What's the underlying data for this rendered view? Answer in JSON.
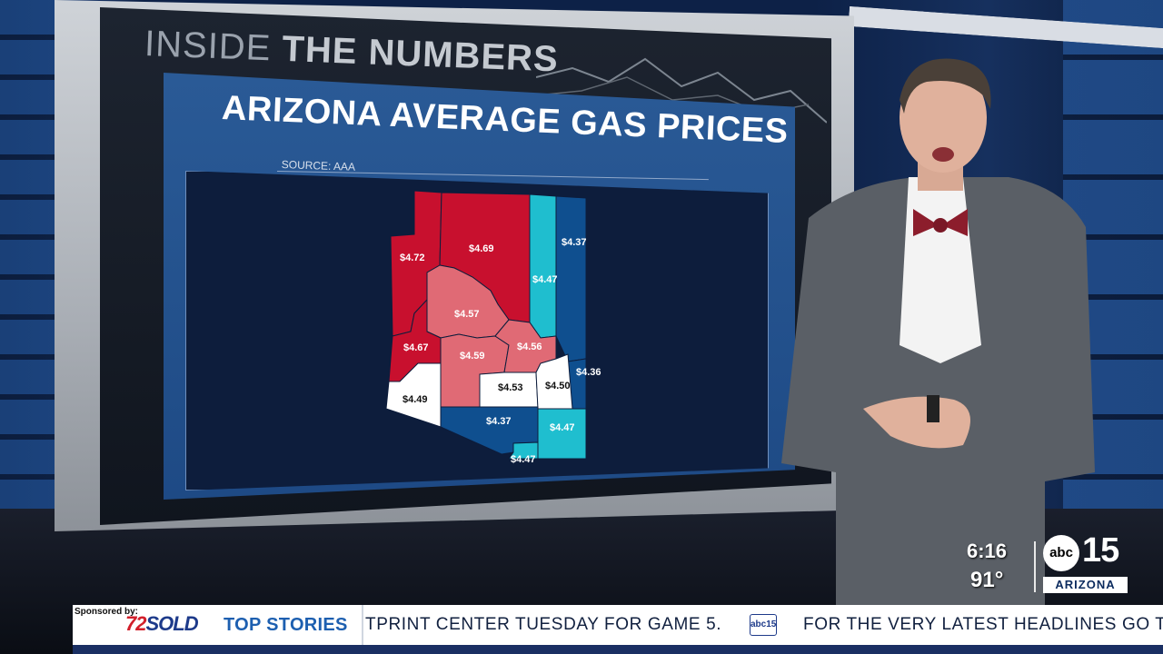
{
  "segment": {
    "title_light": "INSIDE",
    "title_bold": "THE NUMBERS"
  },
  "graphic": {
    "title": "ARIZONA AVERAGE GAS PRICES",
    "source": "SOURCE: AAA"
  },
  "map": {
    "regions": [
      {
        "id": "mohave",
        "price": "$4.72",
        "color": "#c8102e"
      },
      {
        "id": "coconino",
        "price": "$4.69",
        "color": "#c8102e"
      },
      {
        "id": "navajo",
        "price": "$4.47",
        "color": "#1fbecf"
      },
      {
        "id": "apache",
        "price": "$4.37",
        "color": "#0f4f8f"
      },
      {
        "id": "yavapai",
        "price": "$4.57",
        "color": "#e06a75"
      },
      {
        "id": "la-paz",
        "price": "$4.67",
        "color": "#c8102e"
      },
      {
        "id": "maricopa",
        "price": "$4.59",
        "color": "#e06a75"
      },
      {
        "id": "gila",
        "price": "$4.56",
        "color": "#e06a75"
      },
      {
        "id": "greenlee",
        "price": "$4.36",
        "color": "#0f4f8f"
      },
      {
        "id": "yuma",
        "price": "$4.49",
        "color": "#ffffff"
      },
      {
        "id": "pinal",
        "price": "$4.53",
        "color": "#ffffff"
      },
      {
        "id": "graham",
        "price": "$4.50",
        "color": "#ffffff"
      },
      {
        "id": "pima",
        "price": "$4.37",
        "color": "#0f4f8f"
      },
      {
        "id": "cochise",
        "price": "$4.47",
        "color": "#1fbecf"
      },
      {
        "id": "santa-cruz",
        "price": "$4.47",
        "color": "#1fbecf"
      }
    ]
  },
  "bug": {
    "time": "6:16",
    "temperature": "91°",
    "station_logo": "abc",
    "station_number": "15",
    "station_region": "ARIZONA"
  },
  "ticker": {
    "sponsored_by": "Sponsored by:",
    "sponsor_logo_num": "72",
    "sponsor_logo_word": "SOLD",
    "label": "TOP STORIES",
    "headline_1": "TPRINT CENTER TUESDAY FOR GAME 5.",
    "mini_logo": "abc15",
    "headline_2": "FOR THE VERY LATEST HEADLINES GO T"
  }
}
